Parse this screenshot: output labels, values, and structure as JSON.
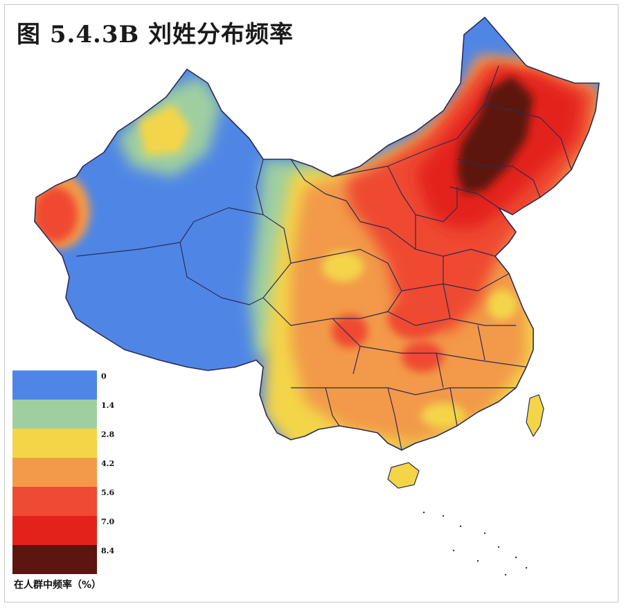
{
  "title": "图 5.4.3B  刘姓分布频率",
  "legend": {
    "caption": "在人群中频率（%）",
    "thresholds": [
      "0",
      "1.4",
      "2.8",
      "4.2",
      "5.6",
      "7.0",
      "8.4"
    ],
    "colors": [
      "#4f86e6",
      "#9fcfa0",
      "#f4d548",
      "#f29a4a",
      "#ef4a33",
      "#e3221c",
      "#5c150f"
    ]
  },
  "map": {
    "subject": "刘姓分布频率",
    "region_colors": {
      "northwest": "#4f86e6",
      "transition": "#9fcfa0",
      "yellow": "#f4d548",
      "orange": "#f29a4a",
      "red": "#ef4a33",
      "deep_red": "#e3221c",
      "darkest": "#5c150f"
    }
  }
}
